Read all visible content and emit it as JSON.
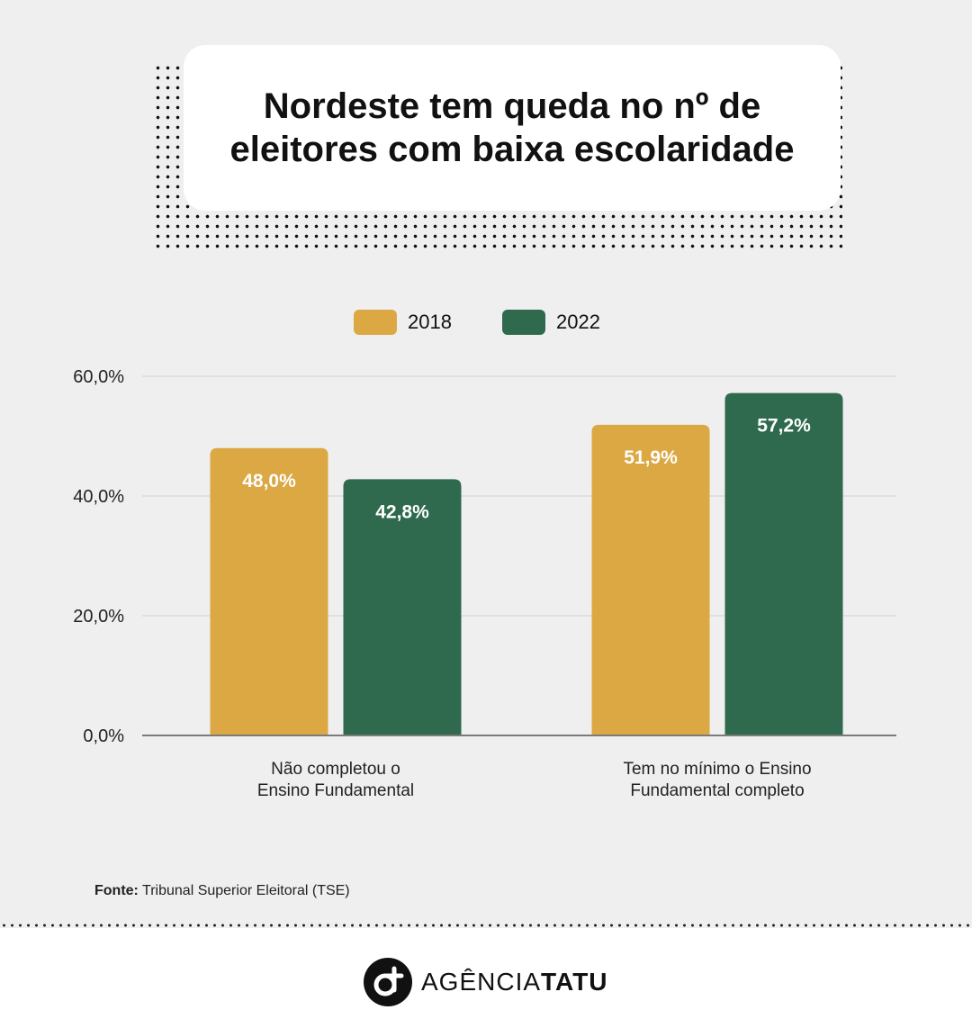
{
  "header": {
    "title": "Nordeste tem queda no nº de\neleitores com baixa escolaridade"
  },
  "colors": {
    "s2018": "#dba844",
    "s2022": "#2f6a4e",
    "background": "#efefef"
  },
  "chart_data": {
    "type": "bar",
    "categories": [
      "Não completou o\nEnsino Fundamental",
      "Tem no mínimo o Ensino\nFundamental completo"
    ],
    "series": [
      {
        "name": "2018",
        "values": [
          48.0,
          51.9
        ],
        "labels": [
          "48,0%",
          "51,9%"
        ]
      },
      {
        "name": "2022",
        "values": [
          42.8,
          57.2
        ],
        "labels": [
          "42,8%",
          "57,2%"
        ]
      }
    ],
    "yticks": [
      "0,0%",
      "20,0%",
      "40,0%",
      "60,0%"
    ],
    "ytick_values": [
      0,
      20,
      40,
      60
    ],
    "ylim": [
      0,
      60
    ],
    "grid": true,
    "legend": "top"
  },
  "source": {
    "label": "Fonte:",
    "text": "Tribunal Superior Eleitoral (TSE)"
  },
  "footer": {
    "brand_light": "AGÊNCIA",
    "brand_bold": "TATU"
  }
}
